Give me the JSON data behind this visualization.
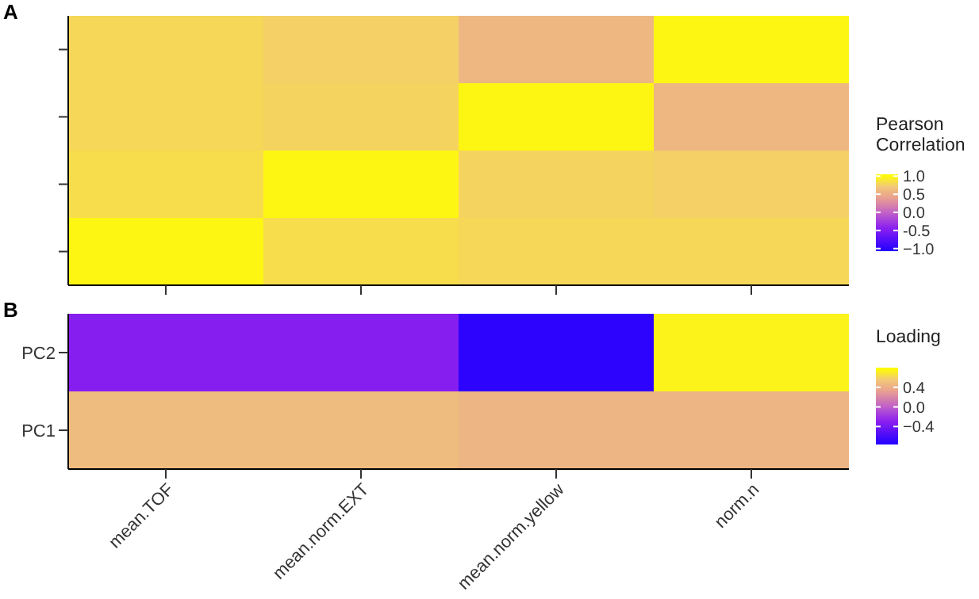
{
  "chart_data": [
    {
      "type": "heatmap",
      "title": "A",
      "clabel": "Pearson Correlation",
      "categories": [
        null,
        null,
        null,
        null
      ],
      "y_categories": [
        null,
        null,
        null,
        null
      ],
      "cells": [
        [
          0.82,
          0.78,
          0.6,
          1.0
        ],
        [
          0.82,
          0.8,
          1.0,
          0.6
        ],
        [
          0.85,
          1.0,
          0.8,
          0.78
        ],
        [
          1.0,
          0.85,
          0.82,
          0.82
        ]
      ],
      "clim": [
        -1.05,
        1.05
      ],
      "cticks": [
        {
          "value": 1,
          "label": "1.0"
        },
        0.5,
        {
          "value": 0,
          "label": "0.0"
        },
        -0.5,
        {
          "value": -1,
          "label": "−1.0"
        }
      ]
    },
    {
      "type": "heatmap",
      "title": "B",
      "clabel": "Loading",
      "categories": [
        "mean.TOF",
        "mean.norm.EXT",
        "mean.norm.yellow",
        "norm.n"
      ],
      "y_categories": [
        "PC2",
        "PC1"
      ],
      "cells": [
        [
          -0.3,
          -0.3,
          -0.7,
          0.75
        ],
        [
          0.5,
          0.5,
          0.45,
          0.45
        ]
      ],
      "clim": [
        -0.75,
        0.8
      ],
      "cticks": [
        0.4,
        {
          "value": 0,
          "label": "0.0"
        },
        {
          "value": -0.4,
          "label": "−0.4"
        }
      ]
    }
  ]
}
